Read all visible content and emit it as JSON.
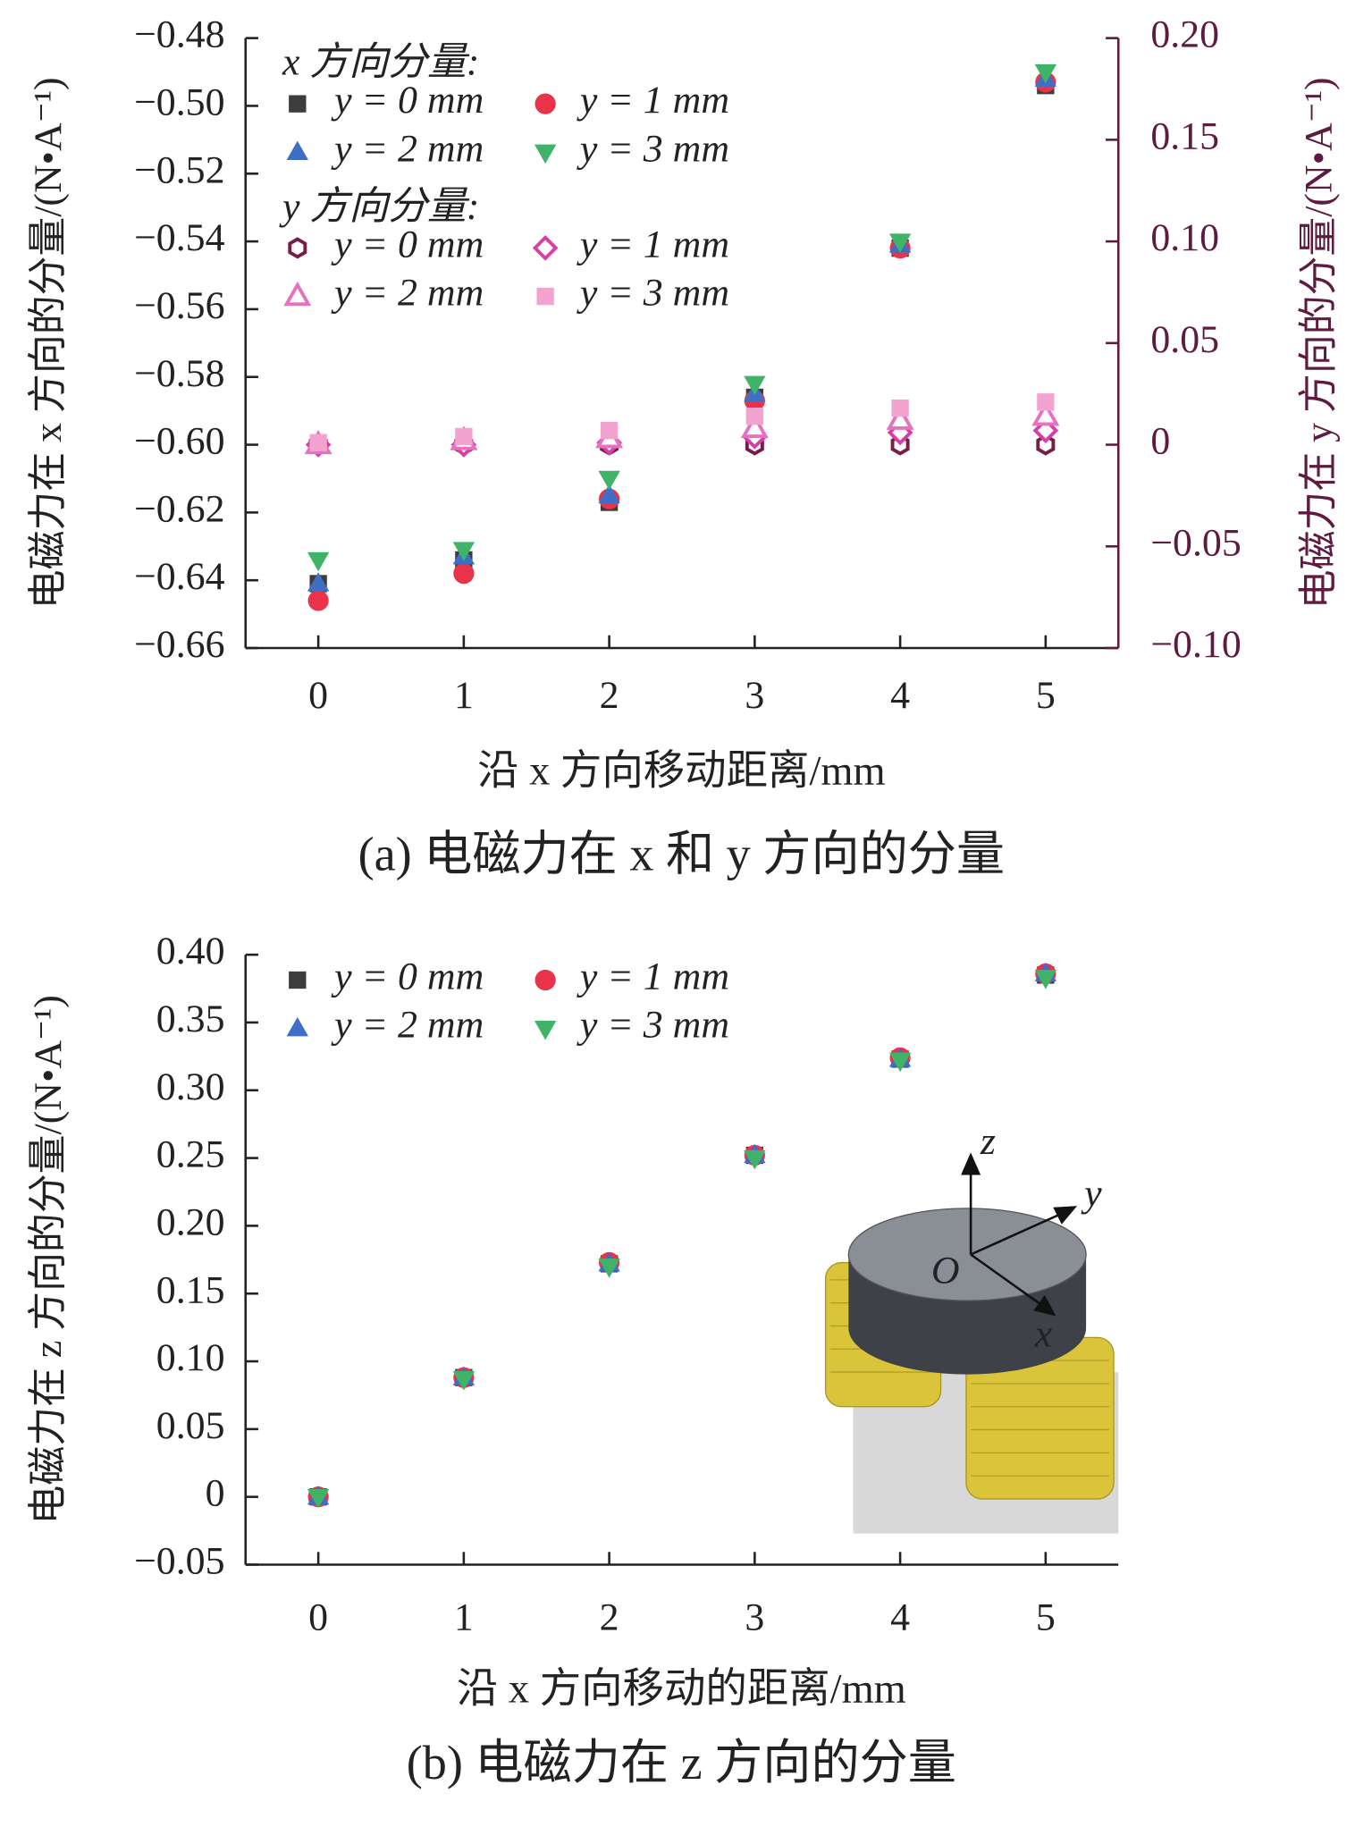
{
  "chart_data": [
    {
      "type": "scatter",
      "x": [
        0,
        1,
        2,
        3,
        4,
        5
      ],
      "xlim": [
        -0.5,
        5.5
      ],
      "xticks": [
        0,
        1,
        2,
        3,
        4,
        5
      ],
      "ylim": [
        -0.66,
        -0.48
      ],
      "yticks": [
        {
          "value": -0.48,
          "label": "−0.48"
        },
        {
          "value": -0.5,
          "label": "−0.50"
        },
        {
          "value": -0.52,
          "label": "−0.52"
        },
        {
          "value": -0.54,
          "label": "−0.54"
        },
        {
          "value": -0.56,
          "label": "−0.56"
        },
        {
          "value": -0.58,
          "label": "−0.58"
        },
        {
          "value": -0.6,
          "label": "−0.60"
        },
        {
          "value": -0.62,
          "label": "−0.62"
        },
        {
          "value": -0.64,
          "label": "−0.64"
        },
        {
          "value": -0.66,
          "label": "−0.66"
        }
      ],
      "y2lim": [
        -0.1,
        0.2
      ],
      "y2ticks": [
        {
          "value": -0.1,
          "label": "−0.10"
        },
        {
          "value": -0.05,
          "label": "−0.05"
        },
        0,
        0.05,
        {
          "value": 0.1,
          "label": "0.10"
        },
        0.15,
        {
          "value": 0.2,
          "label": "0.20"
        }
      ],
      "y2color": "#5e1a3f",
      "xlabel": "沿 x 方向移动距离/mm",
      "ylabel": "电磁力在 x 方向的分量/(N•A⁻¹)",
      "y2label": "电磁力在 y 方向的分量/(N•A⁻¹)",
      "caption": "(a) 电磁力在 x 和 y 方向的分量",
      "legend_titles": [
        "x 方向分量:",
        "y 方向分量:"
      ],
      "series": [
        {
          "name": "y = 0 mm",
          "color": "#3d3d3d",
          "marker": "square",
          "values": [
            -0.641,
            -0.634,
            -0.617,
            -0.586,
            -0.542,
            -0.494
          ]
        },
        {
          "name": "y = 1 mm",
          "color": "#e8334a",
          "marker": "circle",
          "values": [
            -0.646,
            -0.638,
            -0.616,
            -0.587,
            -0.542,
            -0.493
          ]
        },
        {
          "name": "y = 2 mm",
          "color": "#3f6fc4",
          "marker": "triangle",
          "values": [
            -0.641,
            -0.633,
            -0.615,
            -0.585,
            -0.541,
            -0.492
          ]
        },
        {
          "name": "y = 3 mm",
          "color": "#3fb468",
          "marker": "triangle-down",
          "values": [
            -0.634,
            -0.631,
            -0.61,
            -0.582,
            -0.54,
            -0.49
          ]
        },
        {
          "name": "y = 0 mm",
          "color": "#7a1c4a",
          "marker": "hexagon-open",
          "axis": "y2",
          "values": [
            0,
            0,
            0,
            0,
            0,
            0
          ]
        },
        {
          "name": "y = 1 mm",
          "color": "#d63fa5",
          "marker": "diamond-open",
          "axis": "y2",
          "values": [
            0,
            0,
            0.001,
            0.004,
            0.006,
            0.007
          ]
        },
        {
          "name": "y = 2 mm",
          "color": "#e870c0",
          "marker": "triangle-open",
          "axis": "y2",
          "values": [
            0,
            0.002,
            0.003,
            0.008,
            0.012,
            0.014
          ]
        },
        {
          "name": "y = 3 mm",
          "color": "#f3a3d0",
          "marker": "square",
          "axis": "y2",
          "values": [
            0.001,
            0.004,
            0.007,
            0.014,
            0.018,
            0.021
          ]
        }
      ]
    },
    {
      "type": "scatter",
      "x": [
        0,
        1,
        2,
        3,
        4,
        5
      ],
      "xlim": [
        -0.5,
        5.5
      ],
      "xticks": [
        0,
        1,
        2,
        3,
        4,
        5
      ],
      "ylim": [
        -0.05,
        0.4
      ],
      "yticks": [
        {
          "value": -0.05,
          "label": "−0.05"
        },
        0,
        0.05,
        {
          "value": 0.1,
          "label": "0.10"
        },
        0.15,
        {
          "value": 0.2,
          "label": "0.20"
        },
        0.25,
        {
          "value": 0.3,
          "label": "0.30"
        },
        0.35,
        {
          "value": 0.4,
          "label": "0.40"
        }
      ],
      "xlabel": "沿 x 方向移动的距离/mm",
      "ylabel": "电磁力在 z 方向的分量/(N•A⁻¹)",
      "caption": "(b) 电磁力在 z 方向的分量",
      "annotations": [
        "z",
        "y",
        "O",
        "x"
      ],
      "series": [
        {
          "name": "y = 0 mm",
          "color": "#3d3d3d",
          "marker": "square",
          "values": [
            0,
            0.088,
            0.172,
            0.252,
            0.323,
            0.385
          ]
        },
        {
          "name": "y = 1 mm",
          "color": "#e8334a",
          "marker": "circle",
          "values": [
            0,
            0.088,
            0.173,
            0.252,
            0.324,
            0.386
          ]
        },
        {
          "name": "y = 2 mm",
          "color": "#3f6fc4",
          "marker": "triangle",
          "values": [
            0,
            0.088,
            0.172,
            0.252,
            0.323,
            0.386
          ]
        },
        {
          "name": "y = 3 mm",
          "color": "#3fb468",
          "marker": "triangle-down",
          "values": [
            0,
            0.087,
            0.17,
            0.25,
            0.322,
            0.383
          ]
        }
      ]
    }
  ]
}
